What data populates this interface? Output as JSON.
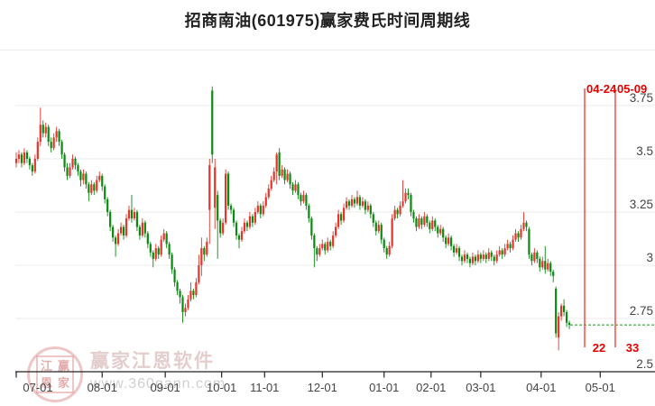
{
  "title": "招商南油(601975)赢家费氏时间周期线",
  "watermark": {
    "seal_chars": [
      "江",
      "赢",
      "恩",
      "家"
    ],
    "brand": "赢家江恩软件",
    "url": "www.360gann.com"
  },
  "chart_data": {
    "type": "candlestick",
    "title": "招商南油(601975)赢家费氏时间周期线",
    "x_ticks": [
      "07-01",
      "08-01",
      "09-01",
      "10-01",
      "11-01",
      "12-01",
      "01-01",
      "02-01",
      "03-01",
      "04-01",
      "05-01"
    ],
    "x_tick_idx": [
      0,
      32,
      55.5,
      76.5,
      92.5,
      114,
      137,
      154.5,
      173,
      195.5,
      217.5
    ],
    "y_ticks": [
      3.75,
      3.5,
      3.25,
      3,
      2.75,
      2.5
    ],
    "ylim": [
      2.5,
      3.9
    ],
    "grid": true,
    "up_color": "#e5342b",
    "down_color": "#0a8a10",
    "fib_line_color": "#f54337",
    "last_price": 2.72,
    "fib_time_lines": [
      {
        "date": "04-24",
        "label": "22",
        "idx": 211.7
      },
      {
        "date": "05-09",
        "label": "33",
        "idx": 223.1
      }
    ],
    "candles": [
      [
        3.48,
        3.53,
        3.46,
        3.5
      ],
      [
        3.5,
        3.54,
        3.48,
        3.52
      ],
      [
        3.52,
        3.53,
        3.46,
        3.48
      ],
      [
        3.48,
        3.55,
        3.47,
        3.53
      ],
      [
        3.53,
        3.54,
        3.48,
        3.5
      ],
      [
        3.5,
        3.51,
        3.45,
        3.47
      ],
      [
        3.47,
        3.48,
        3.42,
        3.44
      ],
      [
        3.44,
        3.52,
        3.43,
        3.5
      ],
      [
        3.5,
        3.6,
        3.49,
        3.58
      ],
      [
        3.58,
        3.74,
        3.56,
        3.66
      ],
      [
        3.66,
        3.68,
        3.6,
        3.62
      ],
      [
        3.62,
        3.67,
        3.6,
        3.65
      ],
      [
        3.65,
        3.66,
        3.56,
        3.58
      ],
      [
        3.58,
        3.6,
        3.53,
        3.55
      ],
      [
        3.55,
        3.62,
        3.54,
        3.6
      ],
      [
        3.6,
        3.65,
        3.58,
        3.63
      ],
      [
        3.63,
        3.64,
        3.56,
        3.58
      ],
      [
        3.58,
        3.59,
        3.5,
        3.52
      ],
      [
        3.52,
        3.53,
        3.44,
        3.46
      ],
      [
        3.46,
        3.48,
        3.4,
        3.42
      ],
      [
        3.42,
        3.48,
        3.41,
        3.46
      ],
      [
        3.46,
        3.52,
        3.45,
        3.5
      ],
      [
        3.5,
        3.51,
        3.45,
        3.47
      ],
      [
        3.47,
        3.48,
        3.42,
        3.44
      ],
      [
        3.44,
        3.45,
        3.37,
        3.4
      ],
      [
        3.4,
        3.45,
        3.38,
        3.43
      ],
      [
        3.43,
        3.44,
        3.36,
        3.38
      ],
      [
        3.38,
        3.39,
        3.3,
        3.34
      ],
      [
        3.34,
        3.4,
        3.33,
        3.38
      ],
      [
        3.38,
        3.39,
        3.33,
        3.35
      ],
      [
        3.35,
        3.42,
        3.34,
        3.4
      ],
      [
        3.4,
        3.44,
        3.39,
        3.42
      ],
      [
        3.42,
        3.43,
        3.35,
        3.37
      ],
      [
        3.37,
        3.38,
        3.29,
        3.31
      ],
      [
        3.31,
        3.32,
        3.23,
        3.25
      ],
      [
        3.25,
        3.26,
        3.16,
        3.18
      ],
      [
        3.18,
        3.19,
        3.11,
        3.13
      ],
      [
        3.13,
        3.14,
        3.04,
        3.1
      ],
      [
        3.1,
        3.17,
        3.09,
        3.15
      ],
      [
        3.15,
        3.2,
        3.14,
        3.18
      ],
      [
        3.18,
        3.19,
        3.12,
        3.14
      ],
      [
        3.14,
        3.24,
        3.13,
        3.22
      ],
      [
        3.22,
        3.28,
        3.21,
        3.26
      ],
      [
        3.26,
        3.33,
        3.2,
        3.22
      ],
      [
        3.22,
        3.27,
        3.21,
        3.25
      ],
      [
        3.25,
        3.26,
        3.16,
        3.18
      ],
      [
        3.18,
        3.19,
        3.12,
        3.14
      ],
      [
        3.14,
        3.22,
        3.13,
        3.2
      ],
      [
        3.2,
        3.21,
        3.13,
        3.15
      ],
      [
        3.15,
        3.16,
        3.08,
        3.1
      ],
      [
        3.1,
        3.11,
        3.04,
        3.06
      ],
      [
        3.06,
        3.07,
        2.99,
        3.03
      ],
      [
        3.03,
        3.1,
        3.02,
        3.08
      ],
      [
        3.08,
        3.09,
        3.03,
        3.05
      ],
      [
        3.05,
        3.14,
        3.04,
        3.12
      ],
      [
        3.12,
        3.17,
        3.11,
        3.15
      ],
      [
        3.15,
        3.16,
        3.08,
        3.1
      ],
      [
        3.1,
        3.11,
        3.03,
        3.05
      ],
      [
        3.05,
        3.06,
        2.96,
        2.98
      ],
      [
        2.98,
        2.99,
        2.9,
        2.92
      ],
      [
        2.92,
        2.93,
        2.86,
        2.88
      ],
      [
        2.88,
        2.89,
        2.82,
        2.85
      ],
      [
        2.85,
        2.86,
        2.73,
        2.78
      ],
      [
        2.78,
        2.82,
        2.76,
        2.8
      ],
      [
        2.8,
        2.86,
        2.79,
        2.84
      ],
      [
        2.84,
        2.92,
        2.83,
        2.88
      ],
      [
        2.88,
        2.89,
        2.84,
        2.86
      ],
      [
        2.86,
        2.94,
        2.85,
        2.92
      ],
      [
        2.92,
        3.05,
        2.91,
        3.0
      ],
      [
        3.0,
        3.13,
        2.95,
        3.08
      ],
      [
        3.08,
        3.09,
        3.02,
        3.05
      ],
      [
        3.05,
        3.13,
        3.04,
        3.11
      ],
      [
        3.26,
        3.5,
        3.1,
        3.47
      ],
      [
        3.82,
        3.84,
        3.48,
        3.52
      ],
      [
        3.27,
        3.5,
        3.17,
        3.46
      ],
      [
        3.33,
        3.35,
        3.03,
        3.21
      ],
      [
        3.21,
        3.22,
        3.13,
        3.15
      ],
      [
        3.15,
        3.22,
        3.14,
        3.2
      ],
      [
        3.2,
        3.45,
        3.19,
        3.43
      ],
      [
        3.43,
        3.44,
        3.26,
        3.28
      ],
      [
        3.28,
        3.29,
        3.24,
        3.26
      ],
      [
        3.26,
        3.27,
        3.18,
        3.2
      ],
      [
        3.2,
        3.21,
        3.12,
        3.14
      ],
      [
        3.14,
        3.15,
        3.08,
        3.12
      ],
      [
        3.12,
        3.18,
        3.11,
        3.16
      ],
      [
        3.16,
        3.22,
        3.15,
        3.2
      ],
      [
        3.2,
        3.21,
        3.16,
        3.18
      ],
      [
        3.18,
        3.25,
        3.17,
        3.23
      ],
      [
        3.23,
        3.24,
        3.18,
        3.2
      ],
      [
        3.2,
        3.27,
        3.19,
        3.25
      ],
      [
        3.25,
        3.3,
        3.24,
        3.28
      ],
      [
        3.28,
        3.29,
        3.22,
        3.24
      ],
      [
        3.24,
        3.3,
        3.23,
        3.28
      ],
      [
        3.28,
        3.34,
        3.27,
        3.32
      ],
      [
        3.32,
        3.38,
        3.31,
        3.36
      ],
      [
        3.36,
        3.42,
        3.35,
        3.4
      ],
      [
        3.4,
        3.46,
        3.39,
        3.44
      ],
      [
        3.44,
        3.53,
        3.38,
        3.52
      ],
      [
        3.53,
        3.55,
        3.4,
        3.42
      ],
      [
        3.42,
        3.47,
        3.41,
        3.45
      ],
      [
        3.45,
        3.46,
        3.38,
        3.4
      ],
      [
        3.4,
        3.45,
        3.39,
        3.43
      ],
      [
        3.43,
        3.44,
        3.36,
        3.38
      ],
      [
        3.38,
        3.39,
        3.33,
        3.35
      ],
      [
        3.35,
        3.4,
        3.34,
        3.38
      ],
      [
        3.38,
        3.39,
        3.31,
        3.33
      ],
      [
        3.33,
        3.34,
        3.28,
        3.3
      ],
      [
        3.3,
        3.35,
        3.29,
        3.33
      ],
      [
        3.33,
        3.34,
        3.26,
        3.28
      ],
      [
        3.28,
        3.29,
        3.2,
        3.22
      ],
      [
        3.22,
        3.23,
        3.12,
        3.14
      ],
      [
        3.14,
        3.15,
        2.99,
        3.08
      ],
      [
        3.08,
        3.09,
        3.02,
        3.05
      ],
      [
        3.05,
        3.1,
        3.04,
        3.08
      ],
      [
        3.08,
        3.12,
        3.07,
        3.1
      ],
      [
        3.1,
        3.11,
        3.05,
        3.07
      ],
      [
        3.07,
        3.13,
        3.06,
        3.11
      ],
      [
        3.11,
        3.12,
        3.07,
        3.09
      ],
      [
        3.09,
        3.16,
        3.08,
        3.14
      ],
      [
        3.14,
        3.2,
        3.13,
        3.18
      ],
      [
        3.18,
        3.26,
        3.17,
        3.24
      ],
      [
        3.24,
        3.25,
        3.19,
        3.21
      ],
      [
        3.21,
        3.29,
        3.2,
        3.27
      ],
      [
        3.27,
        3.32,
        3.26,
        3.3
      ],
      [
        3.3,
        3.31,
        3.26,
        3.28
      ],
      [
        3.28,
        3.33,
        3.27,
        3.31
      ],
      [
        3.31,
        3.32,
        3.27,
        3.29
      ],
      [
        3.29,
        3.35,
        3.28,
        3.32
      ],
      [
        3.32,
        3.33,
        3.26,
        3.28
      ],
      [
        3.28,
        3.32,
        3.27,
        3.3
      ],
      [
        3.3,
        3.31,
        3.24,
        3.26
      ],
      [
        3.26,
        3.3,
        3.25,
        3.28
      ],
      [
        3.28,
        3.29,
        3.22,
        3.24
      ],
      [
        3.24,
        3.25,
        3.18,
        3.2
      ],
      [
        3.2,
        3.21,
        3.14,
        3.16
      ],
      [
        3.16,
        3.21,
        3.15,
        3.19
      ],
      [
        3.19,
        3.2,
        3.1,
        3.12
      ],
      [
        3.12,
        3.13,
        3.06,
        3.08
      ],
      [
        3.08,
        3.09,
        3.03,
        3.05
      ],
      [
        3.05,
        3.11,
        3.04,
        3.09
      ],
      [
        3.09,
        3.24,
        3.08,
        3.22
      ],
      [
        3.22,
        3.28,
        3.21,
        3.26
      ],
      [
        3.26,
        3.27,
        3.22,
        3.24
      ],
      [
        3.24,
        3.3,
        3.23,
        3.28
      ],
      [
        3.28,
        3.4,
        3.27,
        3.3
      ],
      [
        3.3,
        3.36,
        3.29,
        3.34
      ],
      [
        3.34,
        3.36,
        3.31,
        3.33
      ],
      [
        3.33,
        3.34,
        3.23,
        3.25
      ],
      [
        3.25,
        3.26,
        3.2,
        3.22
      ],
      [
        3.22,
        3.23,
        3.16,
        3.18
      ],
      [
        3.18,
        3.24,
        3.17,
        3.22
      ],
      [
        3.22,
        3.23,
        3.17,
        3.19
      ],
      [
        3.19,
        3.25,
        3.18,
        3.23
      ],
      [
        3.23,
        3.24,
        3.18,
        3.2
      ],
      [
        3.2,
        3.21,
        3.15,
        3.17
      ],
      [
        3.17,
        3.23,
        3.16,
        3.21
      ],
      [
        3.21,
        3.22,
        3.16,
        3.18
      ],
      [
        3.18,
        3.19,
        3.13,
        3.15
      ],
      [
        3.15,
        3.19,
        3.14,
        3.17
      ],
      [
        3.17,
        3.18,
        3.11,
        3.13
      ],
      [
        3.13,
        3.14,
        3.08,
        3.1
      ],
      [
        3.1,
        3.15,
        3.09,
        3.13
      ],
      [
        3.13,
        3.14,
        3.07,
        3.09
      ],
      [
        3.09,
        3.1,
        3.04,
        3.06
      ],
      [
        3.06,
        3.1,
        3.05,
        3.08
      ],
      [
        3.08,
        3.09,
        3.02,
        3.04
      ],
      [
        3.04,
        3.05,
        3.0,
        3.02
      ],
      [
        3.02,
        3.07,
        3.01,
        3.05
      ],
      [
        3.05,
        3.06,
        3.01,
        3.03
      ],
      [
        3.03,
        3.04,
        2.99,
        3.01
      ],
      [
        3.01,
        3.06,
        3.0,
        3.04
      ],
      [
        3.04,
        3.05,
        3.0,
        3.02
      ],
      [
        3.02,
        3.07,
        3.01,
        3.05
      ],
      [
        3.05,
        3.06,
        3.01,
        3.03
      ],
      [
        3.03,
        3.07,
        3.02,
        3.05
      ],
      [
        3.05,
        3.06,
        3.01,
        3.03
      ],
      [
        3.03,
        3.08,
        3.02,
        3.06
      ],
      [
        3.06,
        3.07,
        3.02,
        3.04
      ],
      [
        3.04,
        3.05,
        3.0,
        3.02
      ],
      [
        3.02,
        3.07,
        3.01,
        3.05
      ],
      [
        3.05,
        3.09,
        3.04,
        3.07
      ],
      [
        3.07,
        3.08,
        3.03,
        3.05
      ],
      [
        3.05,
        3.1,
        3.04,
        3.08
      ],
      [
        3.08,
        3.12,
        3.07,
        3.1
      ],
      [
        3.1,
        3.11,
        3.06,
        3.08
      ],
      [
        3.08,
        3.14,
        3.07,
        3.12
      ],
      [
        3.12,
        3.17,
        3.11,
        3.15
      ],
      [
        3.15,
        3.16,
        3.11,
        3.13
      ],
      [
        3.13,
        3.19,
        3.12,
        3.17
      ],
      [
        3.17,
        3.25,
        3.16,
        3.2
      ],
      [
        3.2,
        3.21,
        3.16,
        3.18
      ],
      [
        3.17,
        3.18,
        3.03,
        3.05
      ],
      [
        3.05,
        3.06,
        3.0,
        3.02
      ],
      [
        3.02,
        3.08,
        3.01,
        3.06
      ],
      [
        3.06,
        3.07,
        3.01,
        3.03
      ],
      [
        3.03,
        3.04,
        2.97,
        2.99
      ],
      [
        2.99,
        3.04,
        2.98,
        3.02
      ],
      [
        3.02,
        3.09,
        2.96,
        2.98
      ],
      [
        2.98,
        3.03,
        2.97,
        3.01
      ],
      [
        3.01,
        3.02,
        2.95,
        2.97
      ],
      [
        2.97,
        2.98,
        2.92,
        2.95
      ],
      [
        2.89,
        2.9,
        2.66,
        2.68
      ],
      [
        2.66,
        2.78,
        2.6,
        2.76
      ],
      [
        2.76,
        2.82,
        2.74,
        2.81
      ],
      [
        2.81,
        2.84,
        2.76,
        2.78
      ],
      [
        2.78,
        2.79,
        2.71,
        2.73
      ],
      [
        2.73,
        2.74,
        2.7,
        2.72
      ]
    ]
  }
}
